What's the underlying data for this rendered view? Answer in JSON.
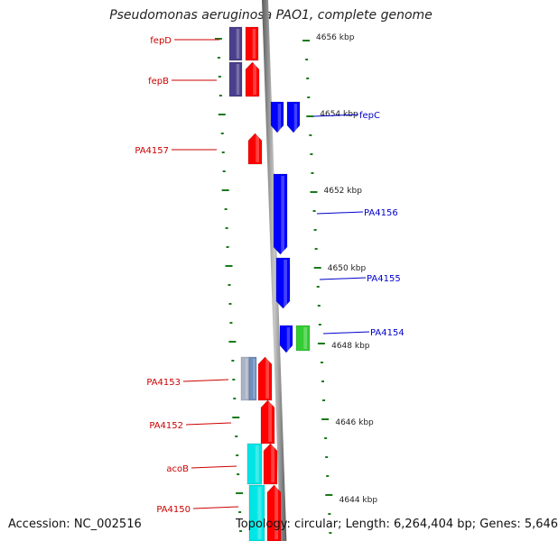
{
  "header": {
    "title": "Pseudomonas aeruginosa PAO1, complete genome"
  },
  "footer": {
    "accession": "Accession: NC_002516",
    "topology": "Topology: circular; Length: 6,264,404 bp; Genes: 5,646"
  },
  "colors": {
    "red_gene": "#ff0000",
    "blue_gene": "#0000ff",
    "navy_gene": "#4a3f8c",
    "cyan_gene": "#00e5e5",
    "green_gene": "#33cc33",
    "gray_gene": "#aab4c8",
    "tick_green": "#1a7a1a",
    "backbone": "#8c8c8c",
    "left_label": "#cc0000",
    "right_label": "#0000cc"
  },
  "scale_labels": [
    "4656 kbp",
    "4654 kbp",
    "4652 kbp",
    "4650 kbp",
    "4648 kbp",
    "4646 kbp",
    "4644 kbp"
  ],
  "left_genes": [
    "fepD",
    "fepB",
    "PA4157",
    "PA4153",
    "PA4152",
    "acoB",
    "PA4150"
  ],
  "right_genes": [
    "fepC",
    "PA4156",
    "PA4155",
    "PA4154"
  ]
}
